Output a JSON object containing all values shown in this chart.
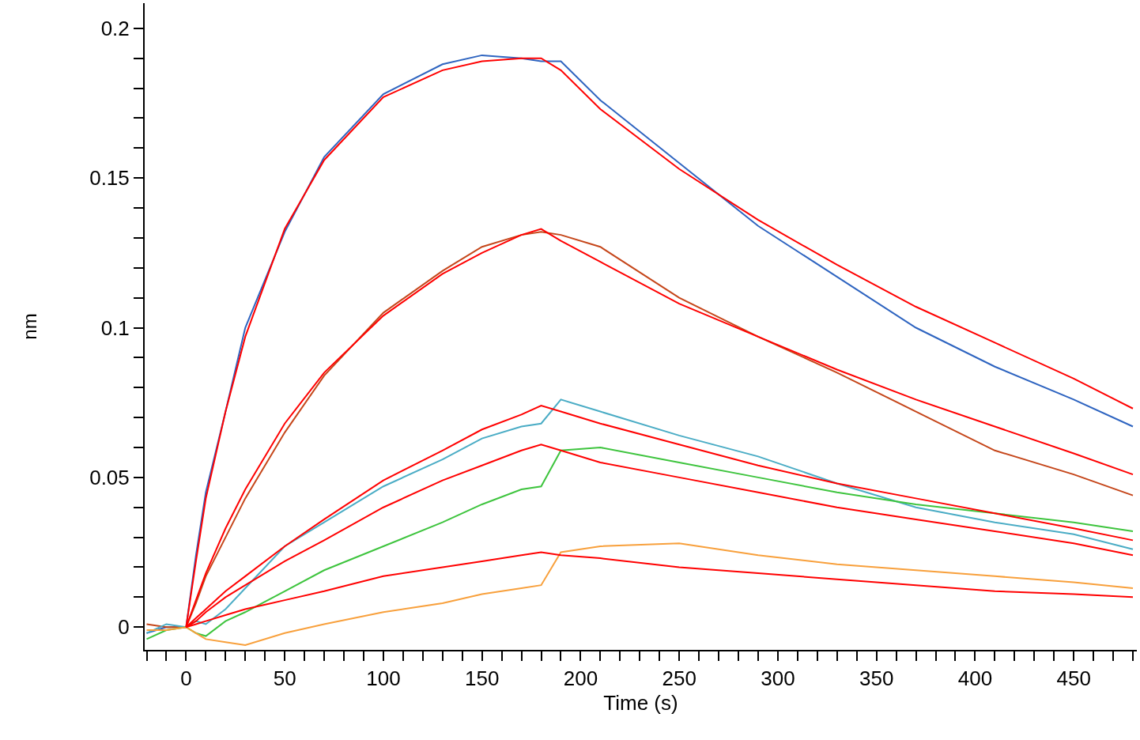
{
  "chart_data": {
    "type": "line",
    "xlabel": "Time (s)",
    "ylabel": "nm",
    "x": [
      -20,
      -10,
      0,
      5,
      10,
      20,
      30,
      50,
      70,
      100,
      130,
      150,
      170,
      180,
      190,
      210,
      250,
      290,
      330,
      370,
      410,
      450,
      480
    ],
    "series": [
      {
        "color": "#2e64c0",
        "values": [
          -0.002,
          0.0,
          0.0,
          0.024,
          0.045,
          0.072,
          0.1,
          0.132,
          0.157,
          0.178,
          0.188,
          0.191,
          0.19,
          0.189,
          0.189,
          0.176,
          0.155,
          0.134,
          0.117,
          0.1,
          0.087,
          0.076,
          0.067
        ]
      },
      {
        "color": "#c5461a",
        "values": [
          0.001,
          0.0,
          0.0,
          0.008,
          0.017,
          0.03,
          0.043,
          0.065,
          0.084,
          0.105,
          0.119,
          0.127,
          0.131,
          0.132,
          0.131,
          0.127,
          0.11,
          0.097,
          0.085,
          0.072,
          0.059,
          0.051,
          0.044
        ]
      },
      {
        "color": "#4aacc5",
        "values": [
          -0.002,
          0.001,
          0.0,
          0.002,
          0.001,
          0.006,
          0.013,
          0.027,
          0.035,
          0.047,
          0.056,
          0.063,
          0.067,
          0.068,
          0.076,
          0.072,
          0.064,
          0.057,
          0.048,
          0.04,
          0.035,
          0.031,
          0.026
        ]
      },
      {
        "color": "#3ec43e",
        "values": [
          -0.004,
          -0.001,
          0.0,
          -0.002,
          -0.003,
          0.002,
          0.005,
          0.012,
          0.019,
          0.027,
          0.035,
          0.041,
          0.046,
          0.047,
          0.059,
          0.06,
          0.055,
          0.05,
          0.045,
          0.041,
          0.038,
          0.035,
          0.032
        ]
      },
      {
        "color": "#f8a03c",
        "values": [
          -0.001,
          -0.001,
          0.0,
          -0.002,
          -0.004,
          -0.005,
          -0.006,
          -0.002,
          0.001,
          0.005,
          0.008,
          0.011,
          0.013,
          0.014,
          0.025,
          0.027,
          0.028,
          0.024,
          0.021,
          0.019,
          0.017,
          0.015,
          0.013
        ]
      },
      {
        "color": "#ff0000",
        "x": [
          0,
          5,
          10,
          20,
          30,
          50,
          70,
          100,
          130,
          150,
          170,
          180,
          190,
          210,
          250,
          290,
          330,
          370,
          410,
          450,
          480
        ],
        "values": [
          0.0,
          0.022,
          0.043,
          0.072,
          0.097,
          0.133,
          0.156,
          0.177,
          0.186,
          0.189,
          0.19,
          0.19,
          0.186,
          0.173,
          0.153,
          0.136,
          0.121,
          0.107,
          0.095,
          0.083,
          0.073
        ]
      },
      {
        "color": "#ff0000",
        "x": [
          0,
          5,
          10,
          20,
          30,
          50,
          70,
          100,
          130,
          150,
          170,
          180,
          190,
          210,
          250,
          290,
          330,
          370,
          410,
          450,
          480
        ],
        "values": [
          0.0,
          0.009,
          0.018,
          0.033,
          0.046,
          0.068,
          0.085,
          0.104,
          0.118,
          0.125,
          0.131,
          0.133,
          0.129,
          0.122,
          0.108,
          0.097,
          0.086,
          0.076,
          0.067,
          0.058,
          0.051
        ]
      },
      {
        "color": "#ff0000",
        "x": [
          0,
          5,
          10,
          20,
          30,
          50,
          70,
          100,
          130,
          150,
          170,
          180,
          190,
          210,
          250,
          290,
          330,
          370,
          410,
          450,
          480
        ],
        "values": [
          0.0,
          0.003,
          0.006,
          0.012,
          0.017,
          0.027,
          0.036,
          0.049,
          0.059,
          0.066,
          0.071,
          0.074,
          0.072,
          0.068,
          0.061,
          0.054,
          0.048,
          0.043,
          0.038,
          0.033,
          0.029
        ]
      },
      {
        "color": "#ff0000",
        "x": [
          0,
          5,
          10,
          20,
          30,
          50,
          70,
          100,
          130,
          150,
          170,
          180,
          190,
          210,
          250,
          290,
          330,
          370,
          410,
          450,
          480
        ],
        "values": [
          0.0,
          0.002,
          0.005,
          0.01,
          0.014,
          0.022,
          0.029,
          0.04,
          0.049,
          0.054,
          0.059,
          0.061,
          0.059,
          0.055,
          0.05,
          0.045,
          0.04,
          0.036,
          0.032,
          0.028,
          0.024
        ]
      },
      {
        "color": "#ff0000",
        "x": [
          0,
          5,
          10,
          20,
          30,
          50,
          70,
          100,
          130,
          150,
          170,
          180,
          190,
          210,
          250,
          290,
          330,
          370,
          410,
          450,
          480
        ],
        "values": [
          0.0,
          0.001,
          0.002,
          0.004,
          0.006,
          0.009,
          0.012,
          0.017,
          0.02,
          0.022,
          0.024,
          0.025,
          0.024,
          0.023,
          0.02,
          0.018,
          0.016,
          0.014,
          0.012,
          0.011,
          0.01
        ]
      }
    ],
    "xlim": [
      -21,
      482
    ],
    "xticks": [
      {
        "value": -20,
        "label": null
      },
      {
        "value": -10,
        "label": null
      },
      0,
      {
        "value": 10,
        "label": null
      },
      {
        "value": 20,
        "label": null
      },
      {
        "value": 30,
        "label": null
      },
      {
        "value": 40,
        "label": null
      },
      50,
      {
        "value": 60,
        "label": null
      },
      {
        "value": 70,
        "label": null
      },
      {
        "value": 80,
        "label": null
      },
      {
        "value": 90,
        "label": null
      },
      100,
      {
        "value": 110,
        "label": null
      },
      {
        "value": 120,
        "label": null
      },
      {
        "value": 130,
        "label": null
      },
      {
        "value": 140,
        "label": null
      },
      150,
      {
        "value": 160,
        "label": null
      },
      {
        "value": 170,
        "label": null
      },
      {
        "value": 180,
        "label": null
      },
      {
        "value": 190,
        "label": null
      },
      200,
      {
        "value": 210,
        "label": null
      },
      {
        "value": 220,
        "label": null
      },
      {
        "value": 230,
        "label": null
      },
      {
        "value": 240,
        "label": null
      },
      250,
      {
        "value": 260,
        "label": null
      },
      {
        "value": 270,
        "label": null
      },
      {
        "value": 280,
        "label": null
      },
      {
        "value": 290,
        "label": null
      },
      300,
      {
        "value": 310,
        "label": null
      },
      {
        "value": 320,
        "label": null
      },
      {
        "value": 330,
        "label": null
      },
      {
        "value": 340,
        "label": null
      },
      350,
      {
        "value": 360,
        "label": null
      },
      {
        "value": 370,
        "label": null
      },
      {
        "value": 380,
        "label": null
      },
      {
        "value": 390,
        "label": null
      },
      400,
      {
        "value": 410,
        "label": null
      },
      {
        "value": 420,
        "label": null
      },
      {
        "value": 430,
        "label": null
      },
      {
        "value": 440,
        "label": null
      },
      450,
      {
        "value": 460,
        "label": null
      },
      {
        "value": 470,
        "label": null
      },
      {
        "value": 480,
        "label": null
      }
    ],
    "ylim": [
      -0.0076,
      0.2084
    ],
    "yticks": [
      0,
      {
        "value": 0.01,
        "label": null
      },
      {
        "value": 0.02,
        "label": null
      },
      {
        "value": 0.03,
        "label": null
      },
      {
        "value": 0.04,
        "label": null
      },
      0.05,
      {
        "value": 0.06,
        "label": null
      },
      {
        "value": 0.07,
        "label": null
      },
      {
        "value": 0.08,
        "label": null
      },
      {
        "value": 0.09,
        "label": null
      },
      0.1,
      {
        "value": 0.11,
        "label": null
      },
      {
        "value": 0.12,
        "label": null
      },
      {
        "value": 0.13,
        "label": null
      },
      {
        "value": 0.14,
        "label": null
      },
      0.15,
      {
        "value": 0.16,
        "label": null
      },
      {
        "value": 0.17,
        "label": null
      },
      {
        "value": 0.18,
        "label": null
      },
      {
        "value": 0.19,
        "label": null
      },
      0.2
    ],
    "marker": "none",
    "line_style": "solid"
  }
}
